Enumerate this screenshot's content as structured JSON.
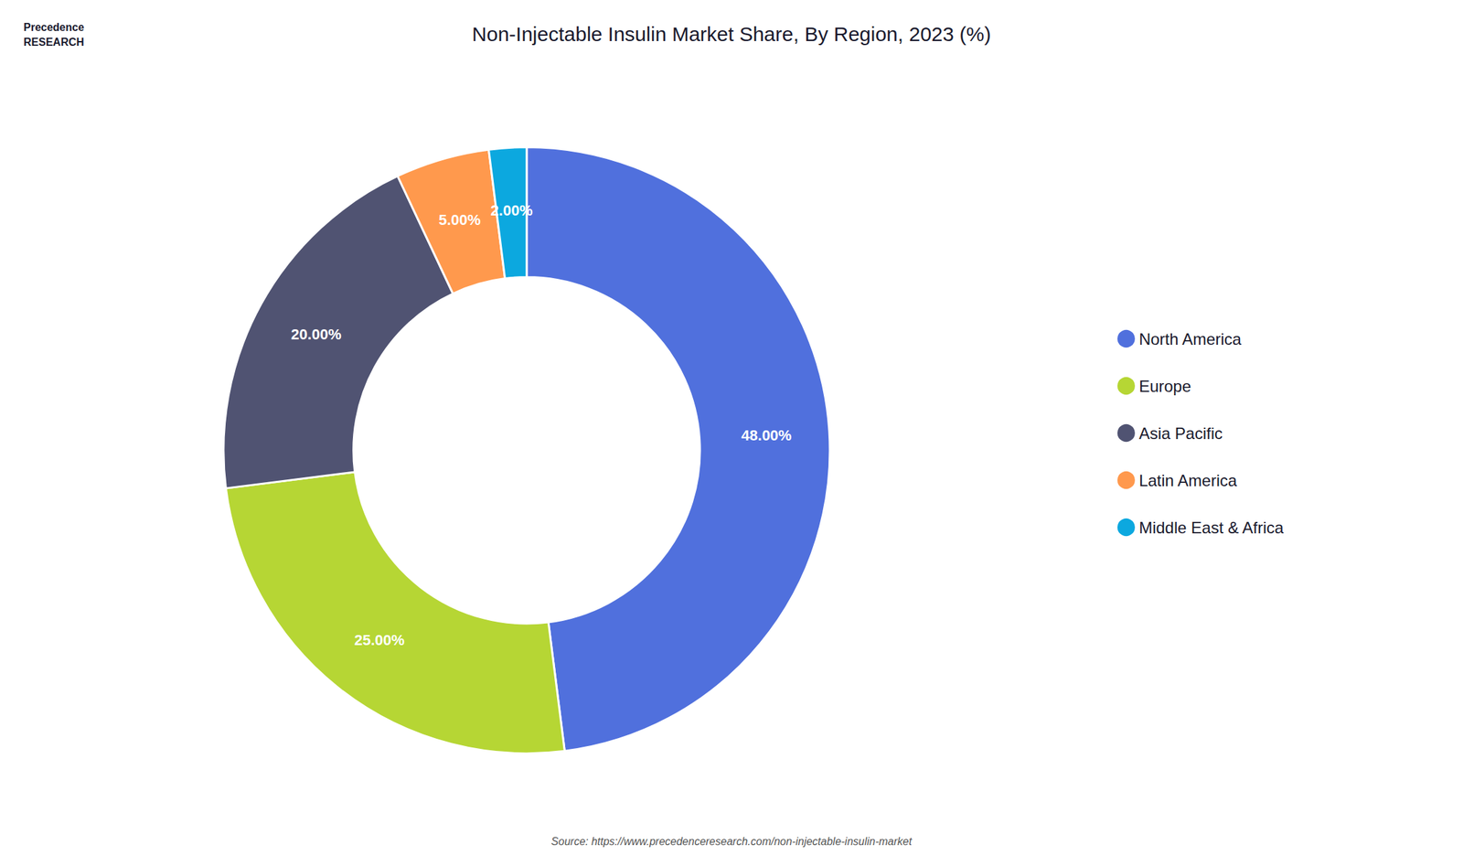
{
  "chart_data": {
    "type": "pie",
    "title": "Non-Injectable Insulin Market Share, By Region, 2023 (%)",
    "categories": [
      "North America",
      "Europe",
      "Asia Pacific",
      "Latin America",
      "Middle East & Africa"
    ],
    "values": [
      48.0,
      25.0,
      20.0,
      5.0,
      2.0
    ],
    "value_labels": [
      "48.00%",
      "25.00%",
      "20.00%",
      "5.00%",
      "2.00%"
    ],
    "data_labels": true,
    "legend": "right",
    "annotations": [
      "Precedence\nRESEARCH",
      "Source: https://www.precedenceresearch.com/non-injectable-insulin-market"
    ]
  }
}
